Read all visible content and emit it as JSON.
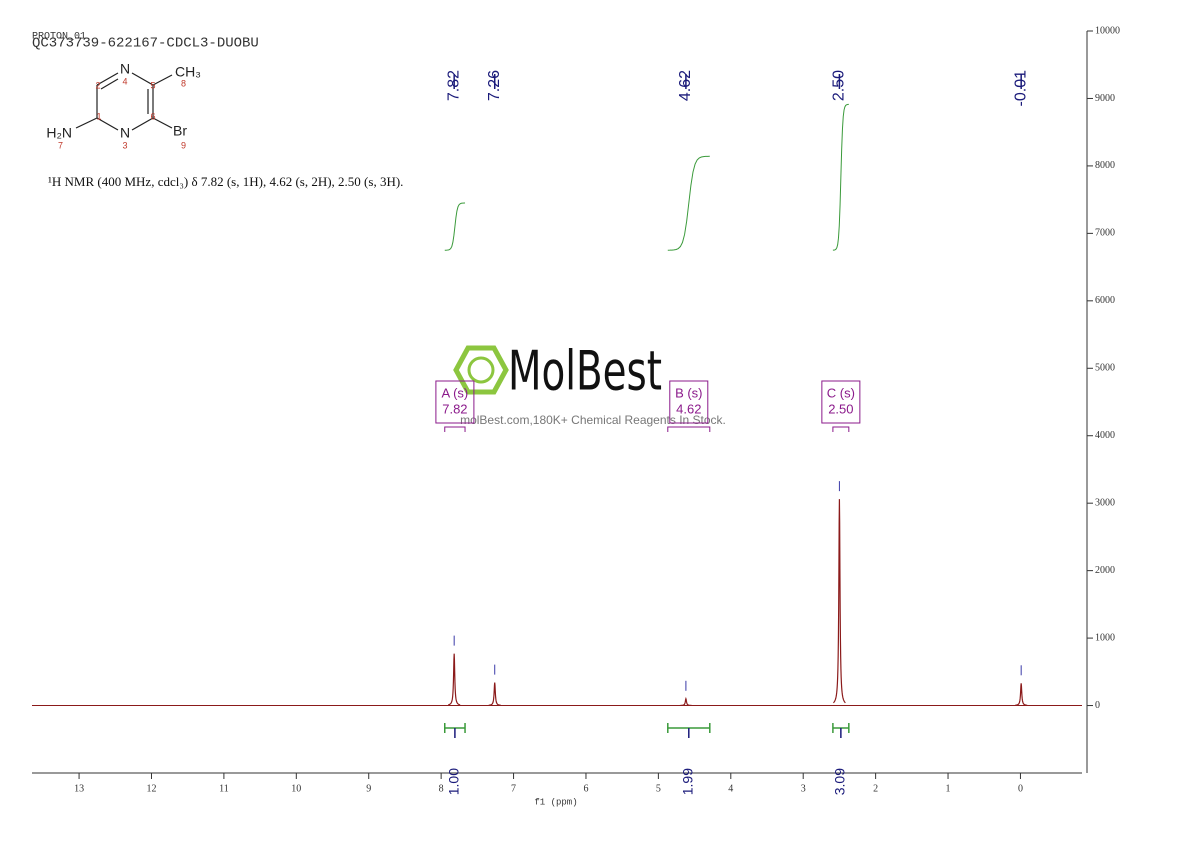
{
  "header": {
    "experiment": "PROTON_01",
    "title": "QC373739-622167-CDCL3-DUOBU",
    "caption": "¹H NMR (400 MHz, cdcl₃) δ 7.82 (s, 1H), 4.62 (s, 2H), 2.50 (s, 3H)."
  },
  "structure": {
    "atoms": [
      {
        "label": "N",
        "num": 4
      },
      {
        "label": "CH₃",
        "num": 8
      },
      {
        "label": "H₂N",
        "num": 7
      },
      {
        "label": "N",
        "num": 3
      },
      {
        "label": "Br",
        "num": 9
      }
    ],
    "ring_numbers": [
      2,
      5,
      1,
      6
    ]
  },
  "watermark": {
    "brand": "MolBest",
    "tagline": "molBest.com,180K+ Chemical Reagents In Stock."
  },
  "chart_data": {
    "type": "line",
    "x_label": "f1 (ppm)",
    "xlim": [
      13.65,
      -0.85
    ],
    "xticks": [
      13,
      12,
      11,
      10,
      9,
      8,
      7,
      6,
      5,
      4,
      3,
      2,
      1,
      0
    ],
    "ylim": [
      -1000,
      10000
    ],
    "yticks": [
      0,
      1000,
      2000,
      3000,
      4000,
      5000,
      6000,
      7000,
      8000,
      9000,
      10000
    ],
    "color": "#8b1a1a",
    "peaks": {
      "x": [
        7.82,
        7.26,
        4.62,
        2.5,
        -0.01
      ],
      "x_labels": [
        "7.82",
        "7.26",
        "4.62",
        "2.50",
        "-0.01"
      ],
      "values": [
        770,
        340,
        100,
        3060,
        330
      ]
    },
    "integrals": {
      "from": [
        7.95,
        4.87,
        2.59
      ],
      "to": [
        7.67,
        4.29,
        2.37
      ],
      "values": [
        1.0,
        1.99,
        3.09
      ],
      "value_labels": [
        "1.00",
        "1.99",
        "3.09"
      ]
    },
    "multiplets": [
      {
        "label": "A (s)",
        "shift": "7.82"
      },
      {
        "label": "B (s)",
        "shift": "4.62"
      },
      {
        "label": "C (s)",
        "shift": "2.50"
      }
    ]
  }
}
